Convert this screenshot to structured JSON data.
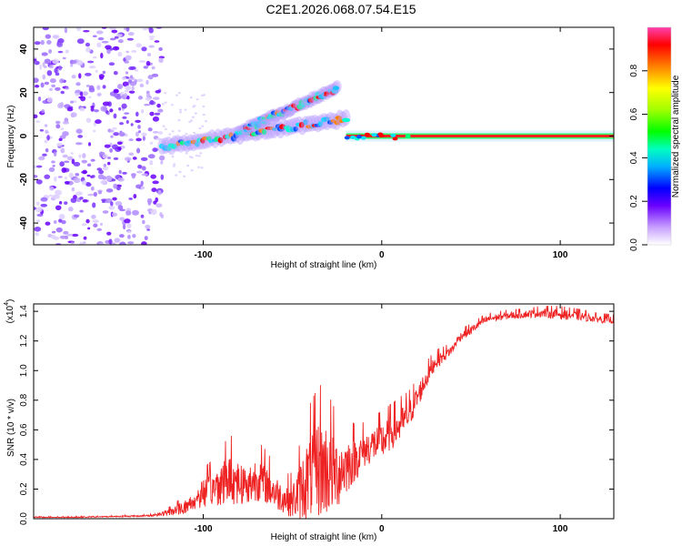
{
  "title": "C2E1.2026.068.07.54.E15",
  "chart_data": [
    {
      "type": "heatmap",
      "xlabel": "Height of straight line (km)",
      "ylabel": "Frequency (Hz)",
      "xlim": [
        -195,
        130
      ],
      "ylim": [
        -50,
        50
      ],
      "x_ticks": [
        -100,
        0,
        100
      ],
      "y_ticks": [
        -40,
        -20,
        0,
        20,
        40
      ],
      "colorbar": {
        "label": "Normalized spectral amplitude",
        "range": [
          0.0,
          1.0
        ],
        "ticks": [
          0.0,
          0.2,
          0.4,
          0.6,
          0.8
        ]
      },
      "features": {
        "noise_region_x": [
          -195,
          -123
        ],
        "signal_onset_x": -123,
        "main_track": {
          "x_start": -20,
          "x_end": 130,
          "frequency": 0
        },
        "diagonal_branches": [
          {
            "x_start": -123,
            "x_end": -20,
            "freq_start": -5,
            "freq_end": 8
          },
          {
            "x_start": -80,
            "x_end": -25,
            "freq_start": 2,
            "freq_end": 22
          }
        ]
      }
    },
    {
      "type": "line",
      "xlabel": "Height of straight line (km)",
      "ylabel": "SNR (10 * v/v)",
      "y_scale_label": "(x10",
      "y_scale_exponent": "4",
      "xlim": [
        -195,
        130
      ],
      "ylim": [
        0.0,
        1.45
      ],
      "x_ticks": [
        -100,
        0,
        100
      ],
      "y_ticks": [
        0.0,
        0.2,
        0.4,
        0.6,
        0.8,
        1.0,
        1.2,
        1.4
      ],
      "y_tick_labels": [
        "0.0",
        "0.2",
        "0.4",
        "0.6",
        "0.8",
        "1.0",
        "1.2",
        "1.4"
      ],
      "series": [
        {
          "name": "SNR",
          "color": "#ee2222",
          "x": [
            -195,
            -170,
            -150,
            -130,
            -120,
            -110,
            -105,
            -100,
            -95,
            -90,
            -85,
            -80,
            -75,
            -70,
            -65,
            -60,
            -55,
            -50,
            -45,
            -40,
            -35,
            -30,
            -25,
            -20,
            -15,
            -10,
            -5,
            0,
            5,
            10,
            15,
            20,
            25,
            30,
            35,
            40,
            42,
            45,
            50,
            55,
            60,
            70,
            80,
            90,
            100,
            110,
            120,
            130
          ],
          "values": [
            0.01,
            0.01,
            0.015,
            0.02,
            0.04,
            0.08,
            0.12,
            0.18,
            0.2,
            0.24,
            0.28,
            0.25,
            0.22,
            0.28,
            0.24,
            0.18,
            0.14,
            0.12,
            0.2,
            0.3,
            0.35,
            0.33,
            0.31,
            0.36,
            0.4,
            0.46,
            0.5,
            0.52,
            0.58,
            0.63,
            0.7,
            0.82,
            0.95,
            1.06,
            1.1,
            1.15,
            1.2,
            1.24,
            1.27,
            1.32,
            1.35,
            1.37,
            1.38,
            1.39,
            1.38,
            1.37,
            1.35,
            1.34
          ],
          "spread": [
            0.003,
            0.003,
            0.004,
            0.006,
            0.02,
            0.05,
            0.07,
            0.1,
            0.12,
            0.15,
            0.18,
            0.16,
            0.14,
            0.16,
            0.14,
            0.12,
            0.1,
            0.12,
            0.22,
            0.3,
            0.35,
            0.32,
            0.25,
            0.2,
            0.15,
            0.12,
            0.12,
            0.13,
            0.12,
            0.12,
            0.1,
            0.08,
            0.07,
            0.05,
            0.04,
            0.03,
            0.03,
            0.03,
            0.03,
            0.025,
            0.025,
            0.025,
            0.025,
            0.03,
            0.035,
            0.03,
            0.025,
            0.025
          ]
        }
      ]
    }
  ]
}
